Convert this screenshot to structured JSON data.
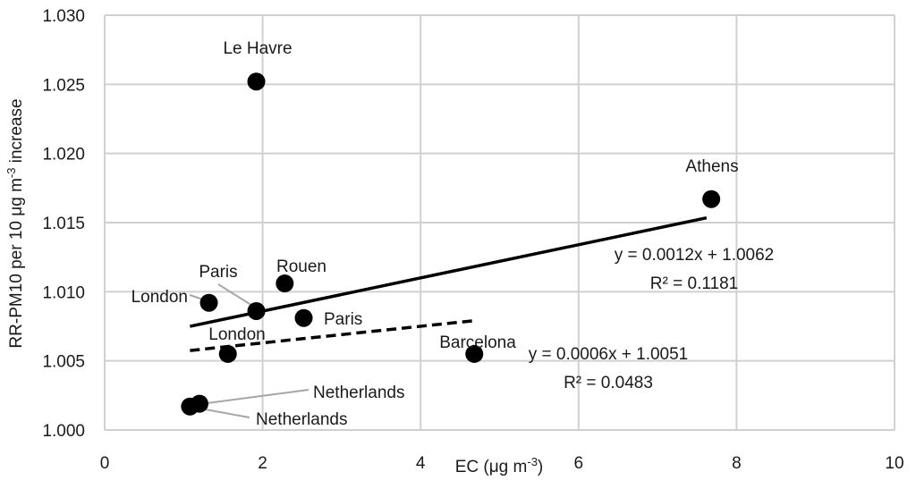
{
  "chart_data": {
    "type": "scatter",
    "title": "",
    "xlabel": "EC (μg m⁻³)",
    "ylabel": "RR-PM10 per 10 μg m⁻³ increase",
    "xlim": [
      0,
      10
    ],
    "ylim": [
      1.0,
      1.03
    ],
    "x_ticks": [
      "0",
      "2",
      "4",
      "6",
      "8",
      "10"
    ],
    "y_ticks": [
      "1.000",
      "1.005",
      "1.010",
      "1.015",
      "1.020",
      "1.025",
      "1.030"
    ],
    "grid": true,
    "points": [
      {
        "label": "Le Havre",
        "x": 1.92,
        "y": 1.0252
      },
      {
        "label": "Athens",
        "x": 7.68,
        "y": 1.0167
      },
      {
        "label": "Rouen",
        "x": 2.28,
        "y": 1.0106
      },
      {
        "label": "Paris",
        "x": 1.92,
        "y": 1.0086
      },
      {
        "label": "London",
        "x": 1.32,
        "y": 1.0092
      },
      {
        "label": "Paris",
        "x": 2.52,
        "y": 1.0081
      },
      {
        "label": "London",
        "x": 1.56,
        "y": 1.0055
      },
      {
        "label": "Barcelona",
        "x": 4.68,
        "y": 1.0055
      },
      {
        "label": "Netherlands",
        "x": 1.2,
        "y": 1.0019
      },
      {
        "label": "Netherlands",
        "x": 1.08,
        "y": 1.0017
      }
    ],
    "trendlines": [
      {
        "style": "solid",
        "slope": 0.0012,
        "intercept": 1.0062,
        "x_range": [
          1.08,
          7.62
        ],
        "equation": "y = 0.0012x + 1.0062",
        "r2": "R² = 0.1181"
      },
      {
        "style": "dashed",
        "slope": 0.0006,
        "intercept": 1.0051,
        "x_range": [
          1.08,
          4.68
        ],
        "equation": "y = 0.0006x + 1.0051",
        "r2": "R² = 0.0483"
      }
    ]
  }
}
